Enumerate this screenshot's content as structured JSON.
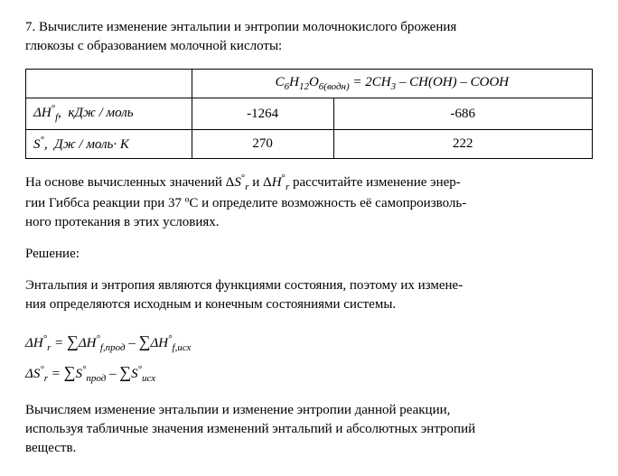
{
  "problem": {
    "number": "7.",
    "text_line1": "Вычислите изменение энтальпии и энтропии молочнокислого брожения",
    "text_line2": "глюкозы с образованием молочной кислоты:"
  },
  "table": {
    "equation": {
      "left": "C₆H₁₂O₆(водн)",
      "eq": " = ",
      "right": "2CH₃ – CH(OH) – COOH"
    },
    "row1": {
      "label_html": "ΔH°<sub>f</sub>,  кДж / моль",
      "val1": "-1264",
      "val2": "-686"
    },
    "row2": {
      "label_html": "S°,  Дж / моль· К",
      "val1": "270",
      "val2": "222"
    }
  },
  "after_table": {
    "line1_pre": "На основе вычисленных значений ",
    "line1_dsr": "ΔS°ᵣ",
    "line1_mid": " и ",
    "line1_dhr": "ΔH°ᵣ",
    "line1_post": " рассчитайте изменение энер-",
    "line2": "гии Гиббса реакции при 37 ºС и определите возможность её самопроизволь-",
    "line3": "ного протекания в этих условиях."
  },
  "solution_label": "Решение:",
  "explanation": {
    "line1": "Энтальпия и энтропия являются функциями состояния, поэтому их измене-",
    "line2": "ния определяются исходным и конечным состояниями системы."
  },
  "formulas": {
    "f1_lhs": "ΔH°ᵣ",
    "f1_rhs_part1": "ΔH°f,прод",
    "f1_rhs_part2": "ΔH°f,исх",
    "f2_lhs": "ΔS°ᵣ",
    "f2_rhs_part1": "S°прод",
    "f2_rhs_part2": "S°исх"
  },
  "final": {
    "line1": "Вычисляем изменение энтальпии и изменение энтропии данной реакции,",
    "line2": "используя табличные значения изменений энтальпий и абсолютных энтропий",
    "line3": "веществ."
  }
}
